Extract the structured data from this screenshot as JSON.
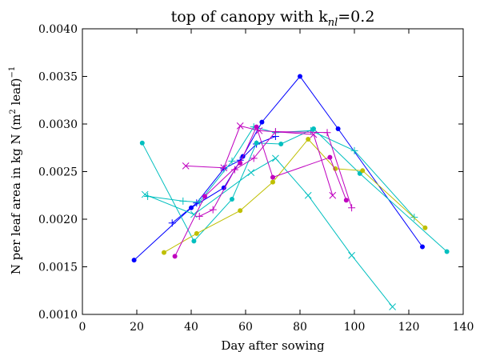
{
  "chart_data": {
    "type": "line",
    "title": "top of canopy with k",
    "title_sub": "nl",
    "title_value": "=0.2",
    "xlabel": "Day after sowing",
    "ylabel": "N per leaf area in kg N (m",
    "ylabel_sup": "2",
    "ylabel_tail": " leaf)",
    "ylabel_exp": "−1",
    "xlim": [
      0,
      140
    ],
    "ylim": [
      0.001,
      0.004
    ],
    "xticks": [
      0,
      20,
      40,
      60,
      80,
      100,
      120,
      140
    ],
    "xtick_labels": [
      "0",
      "20",
      "40",
      "60",
      "80",
      "100",
      "120",
      "140"
    ],
    "yticks": [
      0.001,
      0.0015,
      0.002,
      0.0025,
      0.003,
      0.0035,
      0.004
    ],
    "ytick_labels": [
      "0.0010",
      "0.0015",
      "0.0020",
      "0.0025",
      "0.0030",
      "0.0035",
      "0.0040"
    ],
    "grid": false,
    "series": [
      {
        "color": "#0000ff",
        "marker": "dot",
        "points": [
          [
            19,
            0.00157
          ],
          [
            40,
            0.00212
          ],
          [
            52,
            0.00233
          ],
          [
            59,
            0.00266
          ],
          [
            66,
            0.00302
          ],
          [
            80,
            0.0035
          ],
          [
            94,
            0.00295
          ],
          [
            125,
            0.00171
          ]
        ]
      },
      {
        "color": "#0000ff",
        "marker": "plus",
        "points": [
          [
            33,
            0.00196
          ],
          [
            42,
            0.00217
          ],
          [
            52,
            0.00253
          ],
          [
            58,
            0.00262
          ],
          [
            64,
            0.00279
          ],
          [
            71,
            0.00287
          ]
        ]
      },
      {
        "color": "#00bfbf",
        "marker": "dot",
        "points": [
          [
            22,
            0.0028
          ],
          [
            41,
            0.00177
          ],
          [
            55,
            0.00221
          ],
          [
            64,
            0.0028
          ],
          [
            73,
            0.00279
          ],
          [
            85,
            0.00295
          ],
          [
            102,
            0.00248
          ],
          [
            134,
            0.00166
          ]
        ]
      },
      {
        "color": "#00bfbf",
        "marker": "plus",
        "points": [
          [
            24,
            0.00224
          ],
          [
            37,
            0.00219
          ],
          [
            43,
            0.00218
          ],
          [
            55,
            0.00261
          ],
          [
            63,
            0.00297
          ],
          [
            71,
            0.00291
          ],
          [
            84,
            0.00293
          ],
          [
            100,
            0.00272
          ],
          [
            122,
            0.00202
          ]
        ]
      },
      {
        "color": "#00bfbf",
        "marker": "x",
        "points": [
          [
            23,
            0.00226
          ],
          [
            41,
            0.00205
          ],
          [
            62,
            0.00249
          ],
          [
            71,
            0.00264
          ],
          [
            83,
            0.00225
          ],
          [
            99,
            0.00162
          ],
          [
            114,
            0.00108
          ]
        ]
      },
      {
        "color": "#bfbf00",
        "marker": "dot",
        "points": [
          [
            30,
            0.00165
          ],
          [
            42,
            0.00185
          ],
          [
            58,
            0.00209
          ],
          [
            70,
            0.00239
          ],
          [
            83,
            0.00284
          ],
          [
            93,
            0.00253
          ],
          [
            103,
            0.00251
          ],
          [
            126,
            0.00191
          ]
        ]
      },
      {
        "color": "#bf00bf",
        "marker": "dot",
        "points": [
          [
            34,
            0.00161
          ],
          [
            45,
            0.00224
          ],
          [
            58,
            0.00259
          ],
          [
            64,
            0.00297
          ],
          [
            70,
            0.00244
          ],
          [
            91,
            0.00265
          ],
          [
            97,
            0.0022
          ]
        ]
      },
      {
        "color": "#bf00bf",
        "marker": "plus",
        "points": [
          [
            43,
            0.00203
          ],
          [
            48,
            0.0021
          ],
          [
            56,
            0.00252
          ],
          [
            63,
            0.00264
          ],
          [
            71,
            0.00292
          ],
          [
            90,
            0.00291
          ],
          [
            99,
            0.00212
          ]
        ]
      },
      {
        "color": "#bf00bf",
        "marker": "x",
        "points": [
          [
            38,
            0.00256
          ],
          [
            52,
            0.00254
          ],
          [
            58,
            0.00298
          ],
          [
            65,
            0.00293
          ],
          [
            85,
            0.00289
          ],
          [
            92,
            0.00225
          ]
        ]
      }
    ]
  }
}
